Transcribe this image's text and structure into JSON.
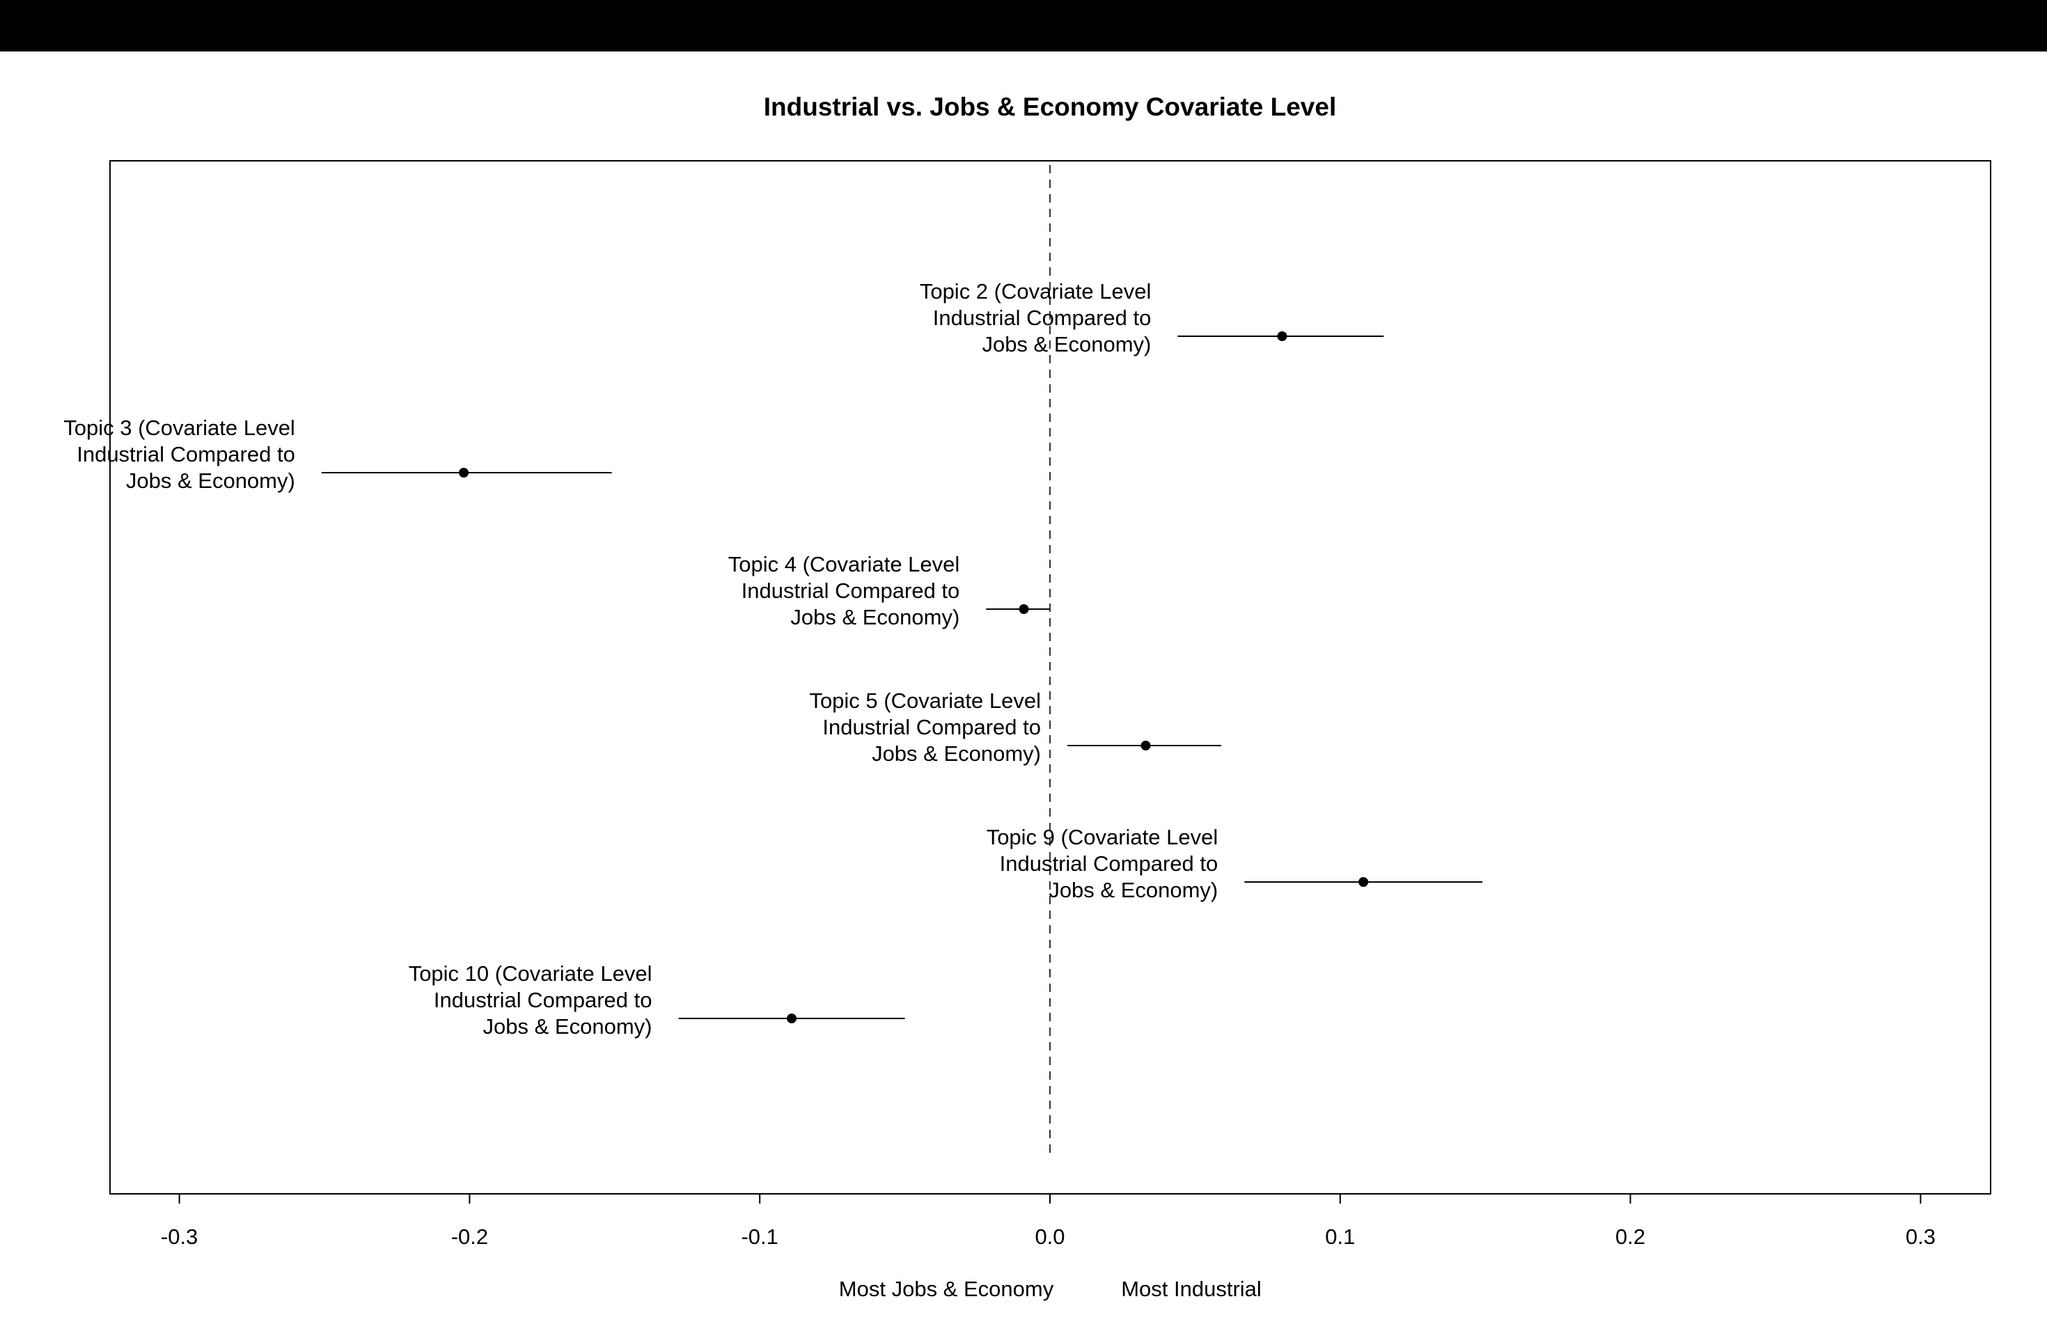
{
  "chart_data": {
    "type": "scatter",
    "title": "Industrial vs. Jobs & Economy Covariate Level",
    "xlabel_left": "Most Jobs & Economy",
    "xlabel_right": "Most Industrial",
    "ylabel": "",
    "xlim": [
      -0.3,
      0.3
    ],
    "x_ticks": [
      "-0.3",
      "-0.2",
      "-0.1",
      "0.0",
      "0.1",
      "0.2",
      "0.3"
    ],
    "x_tick_values": [
      -0.3,
      -0.2,
      -0.1,
      0.0,
      0.1,
      0.2,
      0.3
    ],
    "reference_line": 0.0,
    "grid": false,
    "points": [
      {
        "label": [
          "Topic 2 (Covariate Level",
          "Industrial Compared to",
          "Jobs & Economy)"
        ],
        "estimate": 0.08,
        "lower": 0.044,
        "upper": 0.115
      },
      {
        "label": [
          "Topic 3 (Covariate Level",
          "Industrial Compared to",
          "Jobs & Economy)"
        ],
        "estimate": -0.202,
        "lower": -0.251,
        "upper": -0.151
      },
      {
        "label": [
          "Topic 4 (Covariate Level",
          "Industrial Compared to",
          "Jobs & Economy)"
        ],
        "estimate": -0.009,
        "lower": -0.022,
        "upper": 0.0
      },
      {
        "label": [
          "Topic 5 (Covariate Level",
          "Industrial Compared to",
          "Jobs & Economy)"
        ],
        "estimate": 0.033,
        "lower": 0.006,
        "upper": 0.059
      },
      {
        "label": [
          "Topic 9 (Covariate Level",
          "Industrial Compared to",
          "Jobs & Economy)"
        ],
        "estimate": 0.108,
        "lower": 0.067,
        "upper": 0.149
      },
      {
        "label": [
          "Topic 10 (Covariate Level",
          "Industrial Compared to",
          "Jobs & Economy)"
        ],
        "estimate": -0.089,
        "lower": -0.128,
        "upper": -0.05
      }
    ]
  }
}
